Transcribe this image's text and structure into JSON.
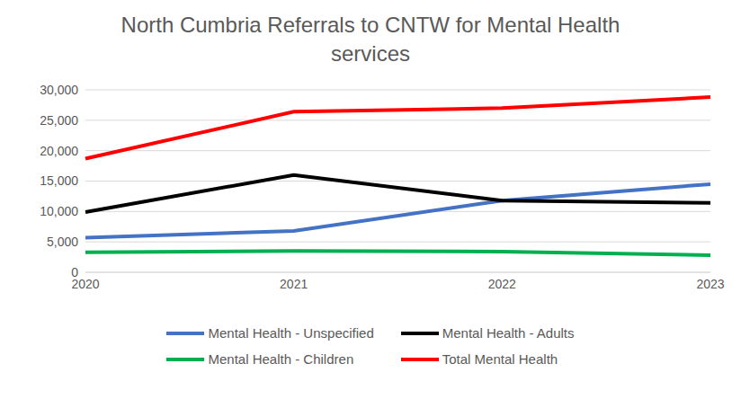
{
  "chart_data": {
    "type": "line",
    "title": "North Cumbria Referrals to CNTW for Mental Health services",
    "categories": [
      "2020",
      "2021",
      "2022",
      "2023"
    ],
    "series": [
      {
        "name": "Mental Health - Unspecified",
        "color": "#4472c4",
        "values": [
          5700,
          6800,
          11800,
          14500
        ]
      },
      {
        "name": "Mental Health - Adults",
        "color": "#000000",
        "values": [
          9900,
          16000,
          11800,
          11400
        ]
      },
      {
        "name": "Mental Health - Children",
        "color": "#00b050",
        "values": [
          3300,
          3500,
          3400,
          2800
        ]
      },
      {
        "name": "Total Mental Health",
        "color": "#ff0000",
        "values": [
          18700,
          26400,
          27000,
          28800
        ]
      }
    ],
    "ylim": [
      0,
      30000
    ],
    "yticks": [
      0,
      {
        "value": 5000,
        "label": "5,000"
      },
      {
        "value": 10000,
        "label": "10,000"
      },
      {
        "value": 15000,
        "label": "15,000"
      },
      {
        "value": 20000,
        "label": "20,000"
      },
      {
        "value": 25000,
        "label": "25,000"
      },
      {
        "value": 30000,
        "label": "30,000"
      }
    ],
    "grid": true,
    "legend": "bottom"
  }
}
